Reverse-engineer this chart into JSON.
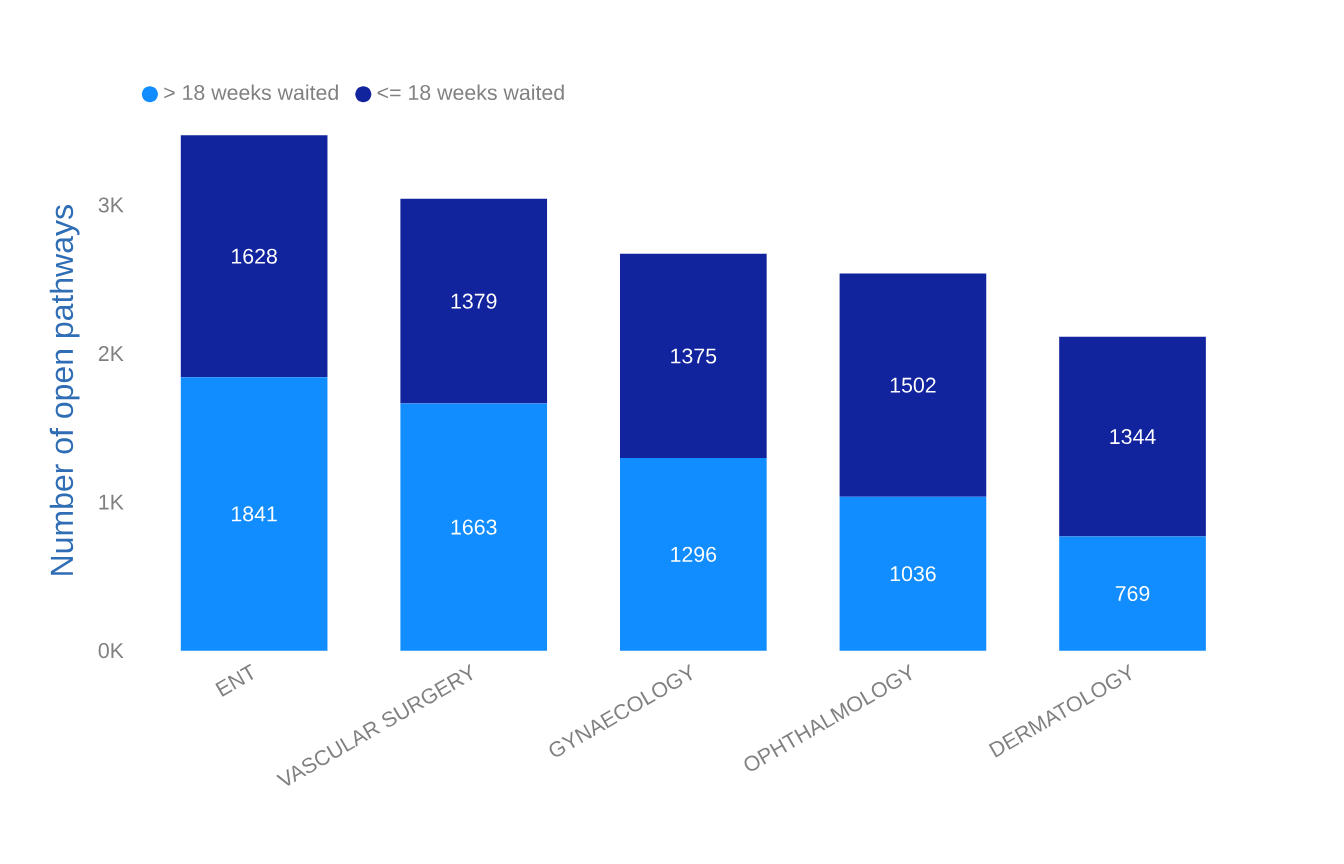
{
  "chart_data": {
    "type": "bar",
    "stacked": true,
    "data_labels": true,
    "legend": "top left",
    "grid": false,
    "ylabel": "Number of open pathways",
    "categories": [
      "ENT",
      "VASCULAR SURGERY",
      "GYNAECOLOGY",
      "OPHTHALMOLOGY",
      "DERMATOLOGY"
    ],
    "series": [
      {
        "name": "> 18 weeks waited",
        "color": "#118dff",
        "values": [
          1841,
          1663,
          1296,
          1036,
          769
        ]
      },
      {
        "name": "<= 18 weeks waited",
        "color": "#12239e",
        "values": [
          1628,
          1379,
          1375,
          1502,
          1344
        ]
      }
    ],
    "ylim": [
      0,
      3500
    ],
    "yticks": [
      {
        "value": 0,
        "label": "0K"
      },
      {
        "value": 1000,
        "label": "1K"
      },
      {
        "value": 2000,
        "label": "2K"
      },
      {
        "value": 3000,
        "label": "3K"
      }
    ]
  }
}
